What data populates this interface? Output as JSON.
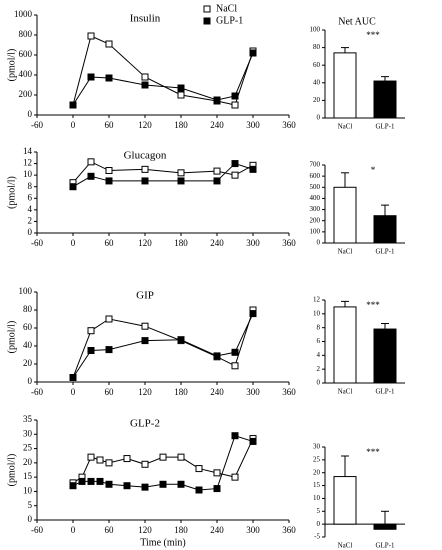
{
  "chart_data": [
    {
      "type": "line",
      "title": "Insulin",
      "y_label": "(pmol/l)",
      "legend": "top",
      "x": [
        0,
        30,
        60,
        120,
        180,
        240,
        270,
        300
      ],
      "series": [
        {
          "name": "NaCl",
          "color": "#000000",
          "fill": "#ffffff",
          "values": [
            100,
            790,
            710,
            380,
            200,
            140,
            100,
            640
          ]
        },
        {
          "name": "GLP-1",
          "color": "#000000",
          "fill": "#000000",
          "values": [
            100,
            380,
            370,
            300,
            270,
            150,
            190,
            620
          ]
        }
      ],
      "xlim": [
        -60,
        360
      ],
      "xticks": [
        -60,
        0,
        60,
        120,
        180,
        240,
        300,
        360
      ],
      "ylim": [
        0,
        1000
      ],
      "yticks": [
        0,
        200,
        400,
        600,
        800,
        1000
      ]
    },
    {
      "type": "bar",
      "title": "Net AUC",
      "annotation": "***",
      "categories": [
        "NaCl",
        "GLP-1"
      ],
      "values": [
        74,
        42
      ],
      "errors": [
        6,
        5
      ],
      "colors": [
        "#ffffff",
        "#000000"
      ],
      "ylim": [
        0,
        100
      ],
      "yticks": [
        0,
        20,
        40,
        60,
        80,
        100
      ]
    },
    {
      "type": "line",
      "title": "Glucagon",
      "y_label": "(pmol/l)",
      "x": [
        0,
        30,
        60,
        120,
        180,
        240,
        270,
        300
      ],
      "series": [
        {
          "color": "#000000",
          "fill": "#ffffff",
          "values": [
            8.7,
            12.3,
            10.8,
            11.0,
            10.4,
            10.7,
            10.0,
            11.7
          ]
        },
        {
          "color": "#000000",
          "fill": "#000000",
          "values": [
            8.0,
            9.8,
            9.0,
            9.0,
            9.0,
            9.0,
            12.0,
            11.0
          ]
        }
      ],
      "xlim": [
        -60,
        360
      ],
      "xticks": [
        -60,
        0,
        60,
        120,
        180,
        240,
        300,
        360
      ],
      "ylim": [
        0,
        14
      ],
      "yticks": [
        0,
        2,
        4,
        6,
        8,
        10,
        12,
        14
      ]
    },
    {
      "type": "bar",
      "annotation": "*",
      "categories": [
        "NaCl",
        "GLP-1"
      ],
      "values": [
        500,
        245
      ],
      "errors": [
        130,
        95
      ],
      "colors": [
        "#ffffff",
        "#000000"
      ],
      "ylim": [
        0,
        700
      ],
      "yticks": [
        0,
        100,
        200,
        300,
        400,
        500,
        600,
        700
      ]
    },
    {
      "type": "line",
      "title": "GIP",
      "y_label": "(pmol/l)",
      "x": [
        0,
        30,
        60,
        120,
        180,
        240,
        270,
        300
      ],
      "series": [
        {
          "color": "#000000",
          "fill": "#ffffff",
          "values": [
            5,
            57,
            70,
            62,
            46,
            28,
            18,
            80
          ]
        },
        {
          "color": "#000000",
          "fill": "#000000",
          "values": [
            5,
            35,
            36,
            46,
            47,
            29,
            33,
            76
          ]
        }
      ],
      "xlim": [
        -60,
        360
      ],
      "xticks": [
        -60,
        0,
        60,
        120,
        180,
        240,
        300,
        360
      ],
      "ylim": [
        0,
        100
      ],
      "yticks": [
        0,
        20,
        40,
        60,
        80,
        100
      ]
    },
    {
      "type": "bar",
      "annotation": "***",
      "categories": [
        "NaCl",
        "GLP-1"
      ],
      "values": [
        11,
        7.8
      ],
      "errors": [
        0.8,
        0.8
      ],
      "colors": [
        "#ffffff",
        "#000000"
      ],
      "ylim": [
        0,
        12
      ],
      "yticks": [
        0,
        2,
        4,
        6,
        8,
        10,
        12
      ]
    },
    {
      "type": "line",
      "title": "GLP-2",
      "y_label": "(pmol/l)",
      "x_label": "Time (min)",
      "x": [
        0,
        15,
        30,
        45,
        60,
        90,
        120,
        150,
        180,
        210,
        240,
        270,
        300
      ],
      "series": [
        {
          "color": "#000000",
          "fill": "#ffffff",
          "values": [
            13,
            15,
            22,
            21,
            20,
            21.5,
            19.5,
            22,
            22,
            18,
            16.5,
            15,
            28.5
          ]
        },
        {
          "color": "#000000",
          "fill": "#000000",
          "values": [
            12,
            13.5,
            13.5,
            13.5,
            12.5,
            12,
            11.5,
            12.5,
            12.5,
            10.5,
            11,
            29.5,
            27.5
          ]
        }
      ],
      "xlim": [
        -60,
        360
      ],
      "xticks": [
        -60,
        0,
        60,
        120,
        180,
        240,
        300,
        360
      ],
      "ylim": [
        0,
        35
      ],
      "yticks": [
        0,
        5,
        10,
        15,
        20,
        25,
        30,
        35
      ]
    },
    {
      "type": "bar",
      "annotation": "***",
      "categories": [
        "NaCl",
        "GLP-1"
      ],
      "values": [
        18.5,
        -2
      ],
      "errors": [
        8,
        7
      ],
      "colors": [
        "#ffffff",
        "#000000"
      ],
      "ylim": [
        -5,
        30
      ],
      "yticks": [
        -5,
        0,
        5,
        10,
        15,
        20,
        25,
        30
      ]
    }
  ]
}
